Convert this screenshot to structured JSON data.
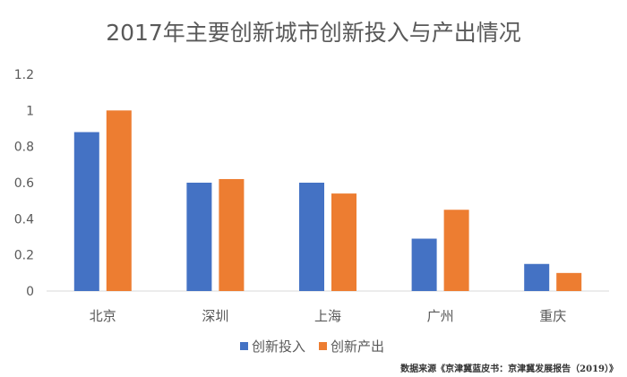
{
  "chart_data": {
    "type": "bar",
    "title": "2017年主要创新城市创新投入与产出情况",
    "categories": [
      "北京",
      "深圳",
      "上海",
      "广州",
      "重庆"
    ],
    "series": [
      {
        "name": "创新投入",
        "values": [
          0.88,
          0.6,
          0.6,
          0.29,
          0.15
        ],
        "color": "#4472c4"
      },
      {
        "name": "创新产出",
        "values": [
          1.0,
          0.62,
          0.54,
          0.45,
          0.1
        ],
        "color": "#ed7d31"
      }
    ],
    "ylim": [
      0,
      1.2
    ],
    "yticks": [
      "0",
      "0.2",
      "0.4",
      "0.6",
      "0.8",
      "1",
      "1.2"
    ],
    "grid": false,
    "legend_position": "bottom"
  },
  "source_note": "数据来源《京津冀蓝皮书：京津冀发展报告（2019）》",
  "colors": {
    "axis": "#d9d9d9",
    "text": "#595959"
  }
}
